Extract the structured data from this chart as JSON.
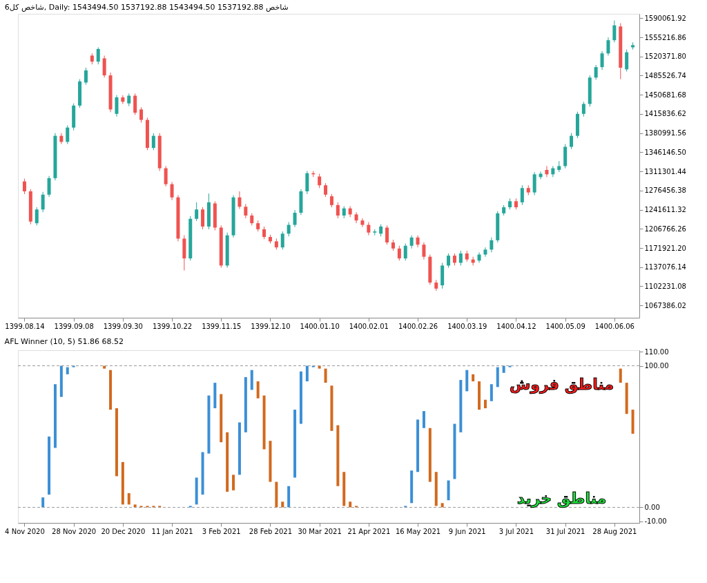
{
  "chart_data": [
    {
      "type": "candlestick",
      "title": "شاخص کل6, Daily: 1543494.50 1537192.88 1543494.50 1537192.88 شاخص",
      "categories": [
        "1399.08.14",
        null,
        null,
        null,
        null,
        null,
        null,
        null,
        "1399.09.08",
        null,
        null,
        null,
        null,
        null,
        null,
        null,
        "1399.09.30",
        null,
        null,
        null,
        null,
        null,
        null,
        null,
        "1399.10.22",
        null,
        null,
        null,
        null,
        null,
        null,
        null,
        "1399.11.15",
        null,
        null,
        null,
        null,
        null,
        null,
        null,
        "1399.12.10",
        null,
        null,
        null,
        null,
        null,
        null,
        null,
        "1400.01.10",
        null,
        null,
        null,
        null,
        null,
        null,
        null,
        "1400.02.01",
        null,
        null,
        null,
        null,
        null,
        null,
        null,
        "1400.02.26",
        null,
        null,
        null,
        null,
        null,
        null,
        null,
        "1400.03.19",
        null,
        null,
        null,
        null,
        null,
        null,
        null,
        "1400.04.12",
        null,
        null,
        null,
        null,
        null,
        null,
        null,
        "1400.05.09",
        null,
        null,
        null,
        null,
        null,
        null,
        null,
        "1400.06.06",
        null,
        null,
        null
      ],
      "ohlc": [
        [
          1293000,
          1298000,
          1270000,
          1275000
        ],
        [
          1275000,
          1279000,
          1215000,
          1220000
        ],
        [
          1217000,
          1246000,
          1213000,
          1242000
        ],
        [
          1242000,
          1274000,
          1237000,
          1269000
        ],
        [
          1269000,
          1303000,
          1265000,
          1299000
        ],
        [
          1299000,
          1381000,
          1295000,
          1376000
        ],
        [
          1376000,
          1381000,
          1361000,
          1365000
        ],
        [
          1365000,
          1395000,
          1361000,
          1391000
        ],
        [
          1391000,
          1435000,
          1386000,
          1431000
        ],
        [
          1431000,
          1479000,
          1427000,
          1475000
        ],
        [
          1473000,
          1500000,
          1469000,
          1495000
        ],
        [
          1522000,
          1526000,
          1506000,
          1511000
        ],
        [
          1511000,
          1537000,
          1506000,
          1534000
        ],
        [
          1517000,
          1522000,
          1482000,
          1486000
        ],
        [
          1486000,
          1491000,
          1419000,
          1424000
        ],
        [
          1416000,
          1450000,
          1411000,
          1446000
        ],
        [
          1446000,
          1450000,
          1434000,
          1438000
        ],
        [
          1435000,
          1453000,
          1430000,
          1449000
        ],
        [
          1449000,
          1453000,
          1414000,
          1418000
        ],
        [
          1424000,
          1428000,
          1400000,
          1405000
        ],
        [
          1405000,
          1409000,
          1350000,
          1354000
        ],
        [
          1354000,
          1381000,
          1350000,
          1376000
        ],
        [
          1376000,
          1381000,
          1312000,
          1317000
        ],
        [
          1317000,
          1321000,
          1284000,
          1288000
        ],
        [
          1288000,
          1292000,
          1259000,
          1264000
        ],
        [
          1264000,
          1268000,
          1184000,
          1189000
        ],
        [
          1189000,
          1195000,
          1131000,
          1153000
        ],
        [
          1153000,
          1230000,
          1149000,
          1225000
        ],
        [
          1225000,
          1255000,
          1221000,
          1242000
        ],
        [
          1242000,
          1246000,
          1206000,
          1211000
        ],
        [
          1211000,
          1271000,
          1206000,
          1255000
        ],
        [
          1253000,
          1257000,
          1204000,
          1209000
        ],
        [
          1209000,
          1213000,
          1136000,
          1140000
        ],
        [
          1140000,
          1200000,
          1136000,
          1195000
        ],
        [
          1195000,
          1268000,
          1191000,
          1264000
        ],
        [
          1264000,
          1275000,
          1243000,
          1247000
        ],
        [
          1247000,
          1252000,
          1226000,
          1231000
        ],
        [
          1231000,
          1235000,
          1213000,
          1217000
        ],
        [
          1217000,
          1222000,
          1202000,
          1206000
        ],
        [
          1206000,
          1211000,
          1188000,
          1192000
        ],
        [
          1192000,
          1196000,
          1180000,
          1184000
        ],
        [
          1184000,
          1189000,
          1169000,
          1173000
        ],
        [
          1173000,
          1202000,
          1169000,
          1198000
        ],
        [
          1198000,
          1219000,
          1193000,
          1214000
        ],
        [
          1214000,
          1241000,
          1210000,
          1236000
        ],
        [
          1236000,
          1279000,
          1232000,
          1275000
        ],
        [
          1275000,
          1312000,
          1270000,
          1308000
        ],
        [
          1308000,
          1312000,
          1301000,
          1306000
        ],
        [
          1302000,
          1307000,
          1281000,
          1286000
        ],
        [
          1286000,
          1290000,
          1265000,
          1269000
        ],
        [
          1266000,
          1270000,
          1246000,
          1250000
        ],
        [
          1250000,
          1255000,
          1226000,
          1231000
        ],
        [
          1231000,
          1248000,
          1226000,
          1244000
        ],
        [
          1244000,
          1248000,
          1228000,
          1233000
        ],
        [
          1233000,
          1237000,
          1217000,
          1222000
        ],
        [
          1222000,
          1226000,
          1210000,
          1214000
        ],
        [
          1214000,
          1219000,
          1195000,
          1200000
        ],
        [
          1200000,
          1206000,
          1195000,
          1202000
        ],
        [
          1198000,
          1215000,
          1193000,
          1211000
        ],
        [
          1209000,
          1213000,
          1178000,
          1182000
        ],
        [
          1182000,
          1187000,
          1167000,
          1171000
        ],
        [
          1171000,
          1176000,
          1149000,
          1153000
        ],
        [
          1153000,
          1180000,
          1149000,
          1176000
        ],
        [
          1176000,
          1195000,
          1171000,
          1191000
        ],
        [
          1191000,
          1195000,
          1173000,
          1178000
        ],
        [
          1178000,
          1182000,
          1151000,
          1156000
        ],
        [
          1156000,
          1160000,
          1105000,
          1109000
        ],
        [
          1109000,
          1114000,
          1094000,
          1098000
        ],
        [
          1104000,
          1145000,
          1098000,
          1140000
        ],
        [
          1140000,
          1162000,
          1136000,
          1158000
        ],
        [
          1158000,
          1162000,
          1140000,
          1145000
        ],
        [
          1145000,
          1167000,
          1140000,
          1162000
        ],
        [
          1162000,
          1167000,
          1147000,
          1151000
        ],
        [
          1151000,
          1156000,
          1140000,
          1145000
        ],
        [
          1149000,
          1164000,
          1145000,
          1160000
        ],
        [
          1160000,
          1173000,
          1156000,
          1169000
        ],
        [
          1169000,
          1191000,
          1164000,
          1186000
        ],
        [
          1186000,
          1239000,
          1182000,
          1235000
        ],
        [
          1235000,
          1250000,
          1231000,
          1246000
        ],
        [
          1246000,
          1262000,
          1242000,
          1257000
        ],
        [
          1257000,
          1262000,
          1242000,
          1246000
        ],
        [
          1255000,
          1286000,
          1250000,
          1281000
        ],
        [
          1281000,
          1286000,
          1268000,
          1273000
        ],
        [
          1273000,
          1310000,
          1268000,
          1306000
        ],
        [
          1301000,
          1311000,
          1297000,
          1307000
        ],
        [
          1314000,
          1321000,
          1301000,
          1306000
        ],
        [
          1306000,
          1321000,
          1301000,
          1317000
        ],
        [
          1314000,
          1330000,
          1310000,
          1321000
        ],
        [
          1321000,
          1361000,
          1317000,
          1356000
        ],
        [
          1356000,
          1381000,
          1352000,
          1376000
        ],
        [
          1376000,
          1420000,
          1372000,
          1416000
        ],
        [
          1416000,
          1438000,
          1411000,
          1434000
        ],
        [
          1434000,
          1486000,
          1429000,
          1482000
        ],
        [
          1482000,
          1505000,
          1478000,
          1501000
        ],
        [
          1501000,
          1530000,
          1496000,
          1526000
        ],
        [
          1526000,
          1555000,
          1522000,
          1550000
        ],
        [
          1550000,
          1586000,
          1546000,
          1577000
        ],
        [
          1575000,
          1581000,
          1479000,
          1500000
        ],
        [
          1497000,
          1533000,
          1493000,
          1528000
        ],
        [
          1537000,
          1546000,
          1533000,
          1541000
        ]
      ],
      "ylim": [
        1045000,
        1598000
      ],
      "yticks": [
        {
          "value": 1590061.92,
          "label": "1590061.92"
        },
        {
          "value": 1555216.86,
          "label": "1555216.86"
        },
        {
          "value": 1520371.8,
          "label": "1520371.80"
        },
        {
          "value": 1485526.74,
          "label": "1485526.74"
        },
        {
          "value": 1450681.68,
          "label": "1450681.68"
        },
        {
          "value": 1415836.62,
          "label": "1415836.62"
        },
        {
          "value": 1380991.56,
          "label": "1380991.56"
        },
        {
          "value": 1346146.5,
          "label": "1346146.50"
        },
        {
          "value": 1311301.44,
          "label": "1311301.44"
        },
        {
          "value": 1276456.38,
          "label": "1276456.38"
        },
        {
          "value": 1241611.32,
          "label": "1241611.32"
        },
        {
          "value": 1206766.26,
          "label": "1206766.26"
        },
        {
          "value": 1171921.2,
          "label": "1171921.20"
        },
        {
          "value": 1137076.14,
          "label": "1137076.14"
        },
        {
          "value": 1102231.08,
          "label": "1102231.08"
        },
        {
          "value": 1067386.02,
          "label": "1067386.02"
        }
      ]
    },
    {
      "type": "bar",
      "title": "AFL Winner (10, 5) 51.86 68.52",
      "categories": [
        "4 Nov 2020",
        null,
        null,
        null,
        null,
        null,
        null,
        null,
        "28 Nov 2020",
        null,
        null,
        null,
        null,
        null,
        null,
        null,
        "20 Dec 2020",
        null,
        null,
        null,
        null,
        null,
        null,
        null,
        "11 Jan 2021",
        null,
        null,
        null,
        null,
        null,
        null,
        null,
        "3 Feb 2021",
        null,
        null,
        null,
        null,
        null,
        null,
        null,
        "28 Feb 2021",
        null,
        null,
        null,
        null,
        null,
        null,
        null,
        "30 Mar 2021",
        null,
        null,
        null,
        null,
        null,
        null,
        null,
        "21 Apr 2021",
        null,
        null,
        null,
        null,
        null,
        null,
        null,
        "16 May 2021",
        null,
        null,
        null,
        null,
        null,
        null,
        null,
        "9 Jun 2021",
        null,
        null,
        null,
        null,
        null,
        null,
        null,
        "3 Jul 2021",
        null,
        null,
        null,
        null,
        null,
        null,
        null,
        "31 Jul 2021",
        null,
        null,
        null,
        null,
        null,
        null,
        null,
        "28 Aug 2021",
        null,
        null,
        null
      ],
      "base": [
        null,
        null,
        null,
        0,
        9,
        42,
        78,
        94,
        99,
        null,
        null,
        null,
        null,
        98,
        69,
        22,
        2,
        2,
        0,
        0,
        0,
        0,
        0,
        null,
        null,
        null,
        null,
        0,
        2,
        9,
        38,
        70,
        46,
        11,
        12,
        23,
        53,
        83,
        77,
        41,
        18,
        0,
        0,
        0,
        21,
        59,
        89,
        99,
        98,
        88,
        54,
        15,
        1,
        0,
        0,
        null,
        null,
        null,
        null,
        null,
        null,
        null,
        0,
        3,
        25,
        56,
        18,
        1,
        0,
        5,
        20,
        53,
        82,
        89,
        69,
        70,
        75,
        85,
        95,
        99,
        null,
        null,
        null,
        null,
        null,
        null,
        null,
        null,
        null,
        null,
        null,
        null,
        null,
        null,
        null,
        null,
        null,
        88,
        66,
        52
      ],
      "values": [
        null,
        null,
        null,
        7,
        41,
        45,
        22,
        5,
        1,
        null,
        null,
        null,
        null,
        2,
        28,
        48,
        30,
        8,
        2,
        1,
        1,
        1,
        1,
        null,
        null,
        null,
        null,
        1,
        19,
        30,
        41,
        18,
        34,
        42,
        11,
        37,
        39,
        14,
        12,
        38,
        29,
        18,
        4,
        15,
        48,
        37,
        11,
        1,
        2,
        10,
        32,
        43,
        24,
        4,
        1,
        null,
        null,
        null,
        null,
        null,
        null,
        null,
        1,
        23,
        37,
        12,
        38,
        24,
        3,
        14,
        39,
        37,
        15,
        5,
        20,
        6,
        12,
        14,
        5,
        1,
        null,
        null,
        null,
        null,
        null,
        null,
        null,
        null,
        null,
        null,
        null,
        null,
        null,
        null,
        null,
        null,
        null,
        10,
        22,
        17
      ],
      "colors": [
        null,
        null,
        null,
        "#3b8fd6",
        "#3b8fd6",
        "#3b8fd6",
        "#3b8fd6",
        "#3b8fd6",
        "#3b8fd6",
        null,
        null,
        null,
        null,
        "#d2691e",
        "#d2691e",
        "#d2691e",
        "#d2691e",
        "#d2691e",
        "#d2691e",
        "#d2691e",
        "#d2691e",
        "#d2691e",
        "#d2691e",
        null,
        null,
        null,
        null,
        "#3b8fd6",
        "#3b8fd6",
        "#3b8fd6",
        "#3b8fd6",
        "#3b8fd6",
        "#d2691e",
        "#d2691e",
        "#d2691e",
        "#3b8fd6",
        "#3b8fd6",
        "#3b8fd6",
        "#d2691e",
        "#d2691e",
        "#d2691e",
        "#d2691e",
        "#d2691e",
        "#3b8fd6",
        "#3b8fd6",
        "#3b8fd6",
        "#3b8fd6",
        "#3b8fd6",
        "#d2691e",
        "#d2691e",
        "#d2691e",
        "#d2691e",
        "#d2691e",
        "#d2691e",
        "#d2691e",
        null,
        null,
        null,
        null,
        null,
        null,
        null,
        "#3b8fd6",
        "#3b8fd6",
        "#3b8fd6",
        "#3b8fd6",
        "#d2691e",
        "#d2691e",
        "#d2691e",
        "#3b8fd6",
        "#3b8fd6",
        "#3b8fd6",
        "#3b8fd6",
        "#d2691e",
        "#d2691e",
        "#d2691e",
        "#3b8fd6",
        "#3b8fd6",
        "#3b8fd6",
        "#3b8fd6",
        null,
        null,
        null,
        null,
        null,
        null,
        null,
        null,
        null,
        null,
        null,
        null,
        null,
        null,
        null,
        null,
        null,
        "#d2691e",
        "#d2691e",
        "#d2691e"
      ],
      "ylim": [
        -11,
        111
      ],
      "yticks": [
        {
          "value": 110,
          "label": "110.00"
        },
        {
          "value": 100,
          "label": "100.00"
        },
        {
          "value": 0,
          "label": "0.00"
        },
        {
          "value": -10,
          "label": "-10.00"
        }
      ],
      "ref_lines": [
        {
          "axis": "y",
          "value": 100,
          "color": "#9a9a9a",
          "line_style": "dashed"
        },
        {
          "axis": "y",
          "value": 0,
          "color": "#9a9a9a",
          "line_style": "dashed"
        }
      ],
      "annotations": [
        "مناطق فروش",
        "مناطق خرید"
      ]
    }
  ]
}
